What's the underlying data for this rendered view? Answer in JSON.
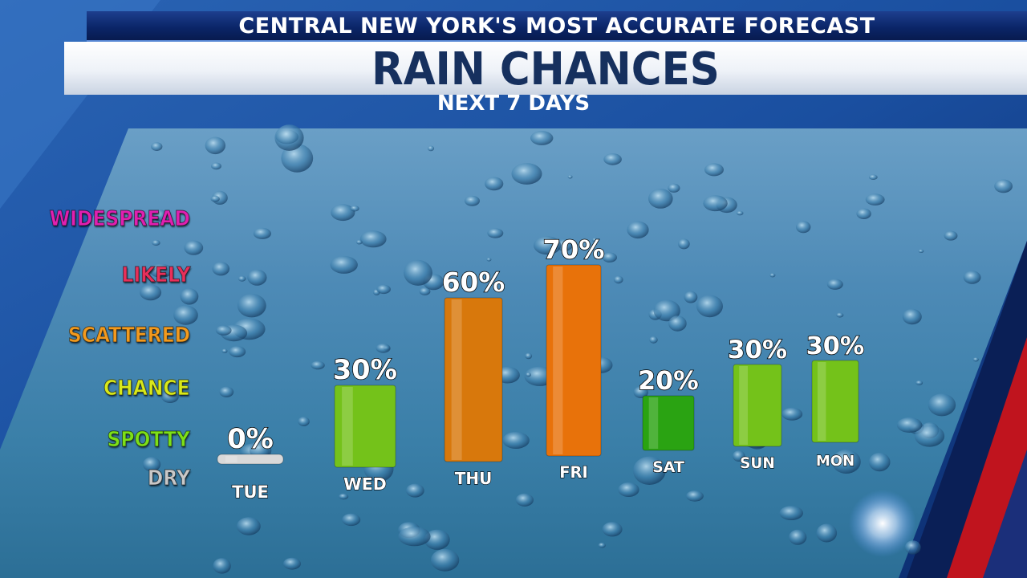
{
  "header": {
    "banner": "CENTRAL NEW YORK'S MOST ACCURATE FORECAST",
    "title": "RAIN CHANCES",
    "subtitle": "NEXT 7 DAYS"
  },
  "levels": [
    {
      "label": "WIDESPREAD",
      "color": "#e020b0"
    },
    {
      "label": "LIKELY",
      "color": "#e8305a"
    },
    {
      "label": "SCATTERED",
      "color": "#f29a1e"
    },
    {
      "label": "CHANCE",
      "color": "#d8e81a"
    },
    {
      "label": "SPOTTY",
      "color": "#7ddf18"
    },
    {
      "label": "DRY",
      "color": "#c8c8c8"
    }
  ],
  "chart_data": {
    "type": "bar",
    "categories": [
      "TUE",
      "WED",
      "THU",
      "FRI",
      "SAT",
      "SUN",
      "MON"
    ],
    "values": [
      0,
      30,
      60,
      70,
      20,
      30,
      30
    ],
    "data_labels": [
      "0%",
      "30%",
      "60%",
      "70%",
      "20%",
      "30%",
      "30%"
    ],
    "bar_colors": [
      "#d9d9d9",
      "#74c21a",
      "#d8780c",
      "#e8720a",
      "#2aa312",
      "#74c21a",
      "#74c21a"
    ],
    "ylim": [
      0,
      100
    ],
    "grid": false,
    "legend": "none"
  }
}
